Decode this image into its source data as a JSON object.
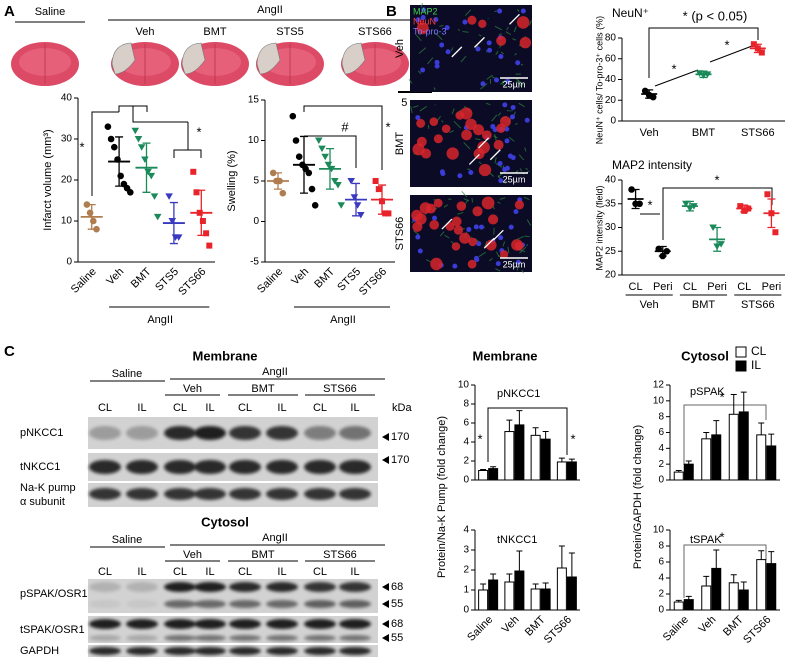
{
  "panel_labels": [
    "A",
    "B",
    "C"
  ],
  "panel_a": {
    "groups": [
      "Saline",
      "AngII"
    ],
    "brains": [
      "Veh",
      "BMT",
      "STS5",
      "STS66"
    ],
    "scale": "5 mm"
  },
  "panel_b": {
    "stains": [
      "MAP2",
      "NeuN",
      "To-pro-3"
    ],
    "rows": [
      "Veh",
      "BMT",
      "STS66"
    ],
    "scale": "25µm"
  },
  "panel_c": {
    "sections": [
      {
        "title": "Membrane",
        "groups": [
          "Saline",
          "AngII"
        ],
        "treatments": [
          "Veh",
          "BMT",
          "STS66"
        ],
        "lanes": [
          "CL",
          "IL",
          "CL",
          "IL",
          "CL",
          "IL",
          "CL",
          "IL"
        ],
        "unit": "kDa",
        "rows": [
          "pNKCC1",
          "tNKCC1"
        ],
        "loading_control": [
          "Na-K pump",
          "α subunit"
        ],
        "markers": [
          170,
          170
        ]
      },
      {
        "title": "Cytosol",
        "groups": [
          "Saline",
          "AngII"
        ],
        "treatments": [
          "Veh",
          "BMT",
          "STS66"
        ],
        "lanes": [
          "CL",
          "IL",
          "CL",
          "IL",
          "CL",
          "IL",
          "CL",
          "IL"
        ],
        "rows": [
          "pSPAK/OSR1",
          "tSPAK/OSR1",
          "GAPDH"
        ],
        "markers": [
          68,
          55,
          68,
          55
        ]
      }
    ],
    "chart_titles": [
      "Membrane",
      "Cytosol"
    ]
  },
  "chart_data": [
    {
      "type": "dot",
      "ylabel": "Infarct volume (mm³)",
      "categories": [
        "Saline",
        "Veh",
        "BMT",
        "STS5",
        "STS66"
      ],
      "group_label": "AngII",
      "colors": [
        "#b07d4f",
        "#000000",
        "#1b8a5a",
        "#3a3ac0",
        "#e8232a"
      ],
      "markers": [
        "circle",
        "circle",
        "triangle",
        "triangle",
        "square"
      ],
      "values": [
        11,
        24.5,
        23,
        9.5,
        12
      ],
      "errors": [
        3,
        6,
        6,
        5,
        5.5
      ],
      "points": [
        [
          14,
          12,
          10,
          8
        ],
        [
          33,
          30,
          28,
          25,
          21,
          19,
          18,
          17
        ],
        [
          32,
          30,
          28,
          25,
          22,
          21,
          16,
          11
        ],
        [
          16,
          10,
          6,
          6
        ],
        [
          22,
          17,
          12,
          10,
          7,
          4
        ]
      ],
      "ylim": [
        0,
        40
      ],
      "yticks": [
        0,
        10,
        20,
        30,
        40
      ],
      "annotations": [
        "*",
        "*"
      ]
    },
    {
      "type": "dot",
      "ylabel": "Swelling (%)",
      "categories": [
        "Saline",
        "Veh",
        "BMT",
        "STS5",
        "STS66"
      ],
      "group_label": "AngII",
      "colors": [
        "#b07d4f",
        "#000000",
        "#1b8a5a",
        "#3a3ac0",
        "#e8232a"
      ],
      "markers": [
        "circle",
        "circle",
        "triangle",
        "triangle",
        "square"
      ],
      "values": [
        5,
        7,
        6.5,
        2.7,
        2.7
      ],
      "errors": [
        1,
        3.5,
        2.5,
        2,
        1.8
      ],
      "points": [
        [
          6,
          5,
          5,
          3.5
        ],
        [
          13,
          10,
          8,
          7,
          6.5,
          6,
          4,
          2
        ],
        [
          10,
          9,
          8,
          7,
          6.5,
          5,
          4.5,
          2
        ],
        [
          5,
          3,
          2,
          0.8
        ],
        [
          5,
          4,
          2.5,
          1,
          1
        ]
      ],
      "ylim": [
        -5,
        15
      ],
      "yticks": [
        -5,
        0,
        5,
        10,
        15
      ],
      "annotations": [
        "#",
        "*"
      ]
    },
    {
      "type": "dot",
      "title": "NeuN⁺",
      "ylabel": "NeuN⁺ cells/ To-pro-3⁺ cells (%)",
      "categories": [
        "Veh",
        "BMT",
        "STS66"
      ],
      "colors": [
        "#000000",
        "#1b8a5a",
        "#e8232a"
      ],
      "markers": [
        "circle",
        "triangle",
        "square"
      ],
      "values": [
        26,
        45,
        70
      ],
      "errors": [
        4,
        3,
        4
      ],
      "points": [
        [
          29,
          25,
          23
        ],
        [
          46,
          44,
          45
        ],
        [
          74,
          70,
          66
        ]
      ],
      "ylim": [
        0,
        80
      ],
      "yticks": [
        0,
        20,
        40,
        60,
        80
      ],
      "annotations": [
        "* (p < 0.05)",
        "*",
        "*"
      ]
    },
    {
      "type": "dot",
      "title": "MAP2 intensity",
      "ylabel": "MAP2 intensity (field)",
      "categories": [
        "CL",
        "Peri",
        "CL",
        "Peri",
        "CL",
        "Peri"
      ],
      "groups": [
        "Veh",
        "BMT",
        "STS66"
      ],
      "colors": [
        "#000000",
        "#000000",
        "#1b8a5a",
        "#1b8a5a",
        "#e8232a",
        "#e8232a"
      ],
      "markers": [
        "circle",
        "circle",
        "triangle",
        "triangle",
        "square",
        "square"
      ],
      "values": [
        36,
        25,
        34.5,
        27.5,
        34,
        33
      ],
      "errors": [
        2,
        1,
        1,
        2.5,
        0.7,
        3
      ],
      "points": [
        [
          38,
          35,
          35
        ],
        [
          25.5,
          24,
          25
        ],
        [
          35,
          34,
          34.5
        ],
        [
          30,
          26,
          26.5
        ],
        [
          34.5,
          33.5,
          34
        ],
        [
          37,
          33,
          29
        ]
      ],
      "ylim": [
        20,
        40
      ],
      "yticks": [
        20,
        25,
        30,
        35,
        40
      ],
      "annotations": [
        "*",
        "*"
      ]
    },
    {
      "type": "grouped_bar",
      "title": "pNKCC1",
      "ylabel": "Protein/Na-K Pump  (fold change)",
      "series": [
        {
          "color": "#ffffff",
          "values": [
            1.0,
            5.1,
            4.7,
            1.9
          ],
          "errors": [
            0.1,
            1.2,
            0.8,
            0.4
          ]
        },
        {
          "color": "#000000",
          "values": [
            1.2,
            5.8,
            4.3,
            1.9
          ],
          "errors": [
            0.2,
            1.5,
            0.8,
            0.3
          ]
        }
      ],
      "ylim": [
        0,
        10
      ],
      "yticks": [
        0,
        2,
        4,
        6,
        8,
        10
      ],
      "annotations": [
        "*",
        "*"
      ]
    },
    {
      "type": "grouped_bar",
      "title": "tNKCC1",
      "categories": [
        "Saline",
        "Veh",
        "BMT",
        "STS66"
      ],
      "series": [
        {
          "color": "#ffffff",
          "values": [
            1.0,
            1.4,
            1.05,
            2.1
          ],
          "errors": [
            0.3,
            0.4,
            0.25,
            1.1
          ]
        },
        {
          "color": "#000000",
          "values": [
            1.5,
            1.95,
            1.05,
            1.65
          ],
          "errors": [
            0.3,
            1.0,
            0.3,
            1.2
          ]
        }
      ],
      "ylim": [
        0,
        4
      ],
      "yticks": [
        0,
        1,
        2,
        3,
        4
      ]
    },
    {
      "type": "grouped_bar",
      "title": "pSPAK",
      "ylabel": "Protein/GAPDH  (fold change)",
      "legend": "upper right",
      "series": [
        {
          "name": "CL",
          "color": "#ffffff",
          "values": [
            1.0,
            5.2,
            8.3,
            5.7
          ],
          "errors": [
            0.2,
            0.8,
            2.5,
            1.5
          ]
        },
        {
          "name": "IL",
          "color": "#000000",
          "values": [
            2.0,
            5.7,
            8.6,
            4.3
          ],
          "errors": [
            0.4,
            1.8,
            2.5,
            1.5
          ]
        }
      ],
      "ylim": [
        0,
        12
      ],
      "yticks": [
        0,
        2,
        4,
        6,
        8,
        10,
        12
      ],
      "annotations": [
        "*"
      ]
    },
    {
      "type": "grouped_bar",
      "title": "tSPAK",
      "categories": [
        "Saline",
        "Veh",
        "BMT",
        "STS66"
      ],
      "series": [
        {
          "color": "#ffffff",
          "values": [
            1.0,
            3.0,
            3.4,
            6.3
          ],
          "errors": [
            0.2,
            1.2,
            1.0,
            1.1
          ]
        },
        {
          "color": "#000000",
          "values": [
            1.3,
            5.2,
            2.5,
            5.8
          ],
          "errors": [
            0.4,
            2.3,
            1.0,
            1.5
          ]
        }
      ],
      "ylim": [
        0,
        10
      ],
      "yticks": [
        0,
        2,
        4,
        6,
        8,
        10
      ],
      "annotations": [
        "*"
      ]
    }
  ]
}
